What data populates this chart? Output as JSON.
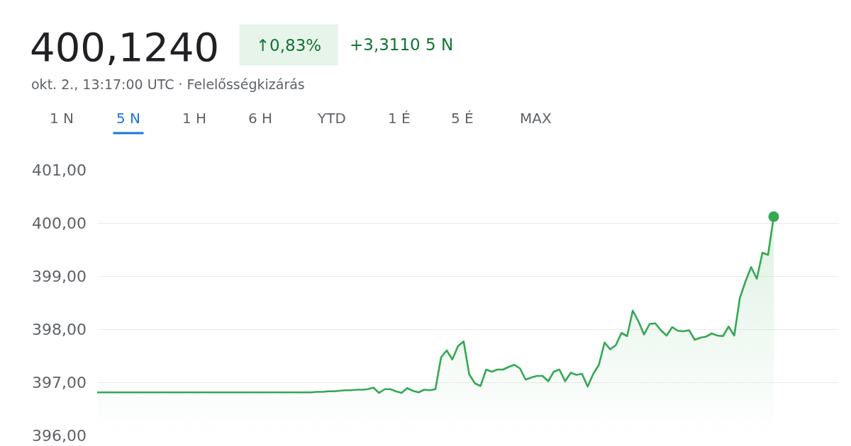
{
  "chart_data": {
    "type": "area",
    "title": "400,1240",
    "subtitle": "okt. 2., 13:17:00 UTC · Felelősségkizárás",
    "annotations": [
      "↑0,83%",
      "+3,3110 5 N",
      "1 N",
      "5 N",
      "1 H",
      "6 H",
      "YTD",
      "1 É",
      "5 É",
      "MAX"
    ],
    "categories": [
      null,
      null,
      null,
      null,
      null,
      null,
      null,
      null,
      null,
      null,
      null,
      null,
      null,
      null,
      null,
      null,
      null,
      null,
      null,
      null,
      null,
      null,
      null,
      null,
      null,
      null,
      null,
      null,
      null,
      null,
      null,
      null,
      null,
      null,
      null,
      null,
      null,
      null,
      null,
      null,
      null,
      null,
      null,
      null,
      null,
      null,
      null,
      null,
      null,
      null,
      null,
      null,
      null,
      null,
      null,
      null,
      null,
      null,
      null,
      null,
      null,
      null,
      null,
      null,
      null,
      null,
      null,
      null,
      null,
      null,
      null,
      null,
      null,
      null,
      null,
      null,
      null,
      null,
      null,
      null,
      null,
      null,
      null,
      null,
      null,
      null,
      null,
      null,
      null,
      null,
      null,
      null,
      null,
      null,
      null,
      null,
      null,
      null,
      null,
      null,
      null,
      null,
      null,
      null,
      null,
      null,
      null,
      null,
      null,
      null,
      null,
      null,
      null,
      null,
      null,
      null,
      null,
      null,
      null,
      null,
      null
    ],
    "series": [
      {
        "color": "#34a853",
        "values": [
          396.81,
          396.81,
          396.81,
          396.81,
          396.81,
          396.81,
          396.81,
          396.81,
          396.81,
          396.81,
          396.81,
          396.81,
          396.81,
          396.81,
          396.81,
          396.81,
          396.81,
          396.81,
          396.81,
          396.81,
          396.81,
          396.81,
          396.81,
          396.81,
          396.81,
          396.81,
          396.81,
          396.81,
          396.81,
          396.81,
          396.81,
          396.81,
          396.81,
          396.81,
          396.81,
          396.81,
          396.81,
          396.81,
          396.81,
          396.82,
          396.82,
          396.83,
          396.83,
          396.84,
          396.85,
          396.85,
          396.86,
          396.86,
          396.87,
          396.9,
          396.8,
          396.87,
          396.87,
          396.83,
          396.8,
          396.89,
          396.84,
          396.81,
          396.86,
          396.85,
          396.87,
          397.47,
          397.6,
          397.43,
          397.68,
          397.77,
          397.15,
          396.98,
          396.93,
          397.24,
          397.2,
          397.24,
          397.24,
          397.29,
          397.33,
          397.26,
          397.05,
          397.09,
          397.12,
          397.12,
          397.02,
          397.2,
          397.24,
          397.02,
          397.18,
          397.14,
          397.16,
          396.92,
          397.16,
          397.33,
          397.75,
          397.62,
          397.7,
          397.93,
          397.87,
          398.35,
          398.15,
          397.9,
          398.1,
          398.11,
          397.98,
          397.88,
          398.04,
          397.97,
          397.96,
          397.98,
          397.8,
          397.84,
          397.86,
          397.92,
          397.88,
          397.87,
          398.05,
          397.88,
          398.59,
          398.9,
          399.17,
          398.95,
          399.44,
          399.4,
          400.12
        ]
      },
      {
        "type": "scatter",
        "marker": "circle",
        "color": "#34a853",
        "values": [
          null,
          null,
          null,
          null,
          null,
          null,
          null,
          null,
          null,
          null,
          null,
          null,
          null,
          null,
          null,
          null,
          null,
          null,
          null,
          null,
          null,
          null,
          null,
          null,
          null,
          null,
          null,
          null,
          null,
          null,
          null,
          null,
          null,
          null,
          null,
          null,
          null,
          null,
          null,
          null,
          null,
          null,
          null,
          null,
          null,
          null,
          null,
          null,
          null,
          null,
          null,
          null,
          null,
          null,
          null,
          null,
          null,
          null,
          null,
          null,
          null,
          null,
          null,
          null,
          null,
          null,
          null,
          null,
          null,
          null,
          null,
          null,
          null,
          null,
          null,
          null,
          null,
          null,
          null,
          null,
          null,
          null,
          null,
          null,
          null,
          null,
          null,
          null,
          null,
          null,
          null,
          null,
          null,
          null,
          null,
          null,
          null,
          null,
          null,
          null,
          null,
          null,
          null,
          null,
          null,
          null,
          null,
          null,
          null,
          null,
          null,
          null,
          null,
          null,
          null,
          null,
          null,
          null,
          null,
          null,
          400.12
        ]
      }
    ],
    "ylim": [
      396,
      401
    ],
    "yticks": [
      {
        "value": 396,
        "label": "396,00"
      },
      {
        "value": 397,
        "label": "397,00"
      },
      {
        "value": 398,
        "label": "398,00"
      },
      {
        "value": 399,
        "label": "399,00"
      },
      {
        "value": 400,
        "label": "400,00"
      },
      {
        "value": 401,
        "label": "401,00"
      }
    ],
    "grid": "y",
    "tick_labels": "y"
  }
}
